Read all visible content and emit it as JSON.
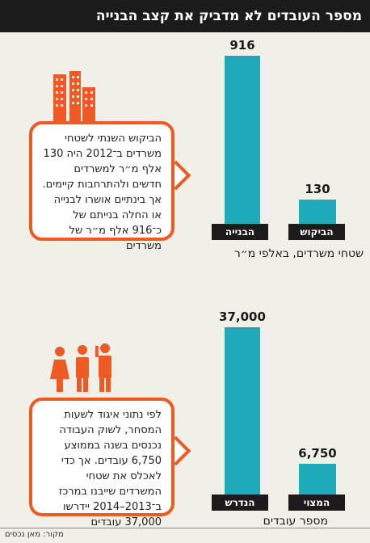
{
  "title": "מספר העובדים לא מדביק את קצב הבנייה",
  "source": "מקור: מאן נכסים",
  "colors": {
    "accent": "#ee5a24",
    "bar": "#1eaab8",
    "dark": "#1b1b1b"
  },
  "chart_data": [
    {
      "type": "bar",
      "categories": [
        "הבנייה",
        "הביקוש"
      ],
      "values": [
        916,
        130
      ],
      "value_labels": [
        "916",
        "130"
      ],
      "xlabel": "שטחי משרדים, באלפי מ״ר",
      "ylim": [
        0,
        916
      ]
    },
    {
      "type": "bar",
      "categories": [
        "הנדרש",
        "המצוי"
      ],
      "values": [
        37000,
        6750
      ],
      "value_labels": [
        "37,000",
        "6,750"
      ],
      "xlabel": "מספר עובדים",
      "ylim": [
        0,
        37000
      ]
    }
  ],
  "callouts": {
    "office": "הביקוש השנתי לשטחי משרדים ב־2012 היה 130 אלף מ״ר למשרדים חדשים ולהתרחבות קיימים. אך בינתיים אושרו לבנייה או החלה בנייתם של כ־916 אלף מ״ר של משרדים",
    "workers": "לפי נתוני איגוד לשעות המסחר, לשוק העבודה נכנסים בשנה בממוצע 6,750 עובדים. אך כדי לאכלס את שטחי המשרדים שייבנו במרכז ב־2013–2014 יידרשו 37,000 עובדים"
  },
  "icons": {
    "top": "office-buildings-icon",
    "bottom": "workers-icon"
  }
}
